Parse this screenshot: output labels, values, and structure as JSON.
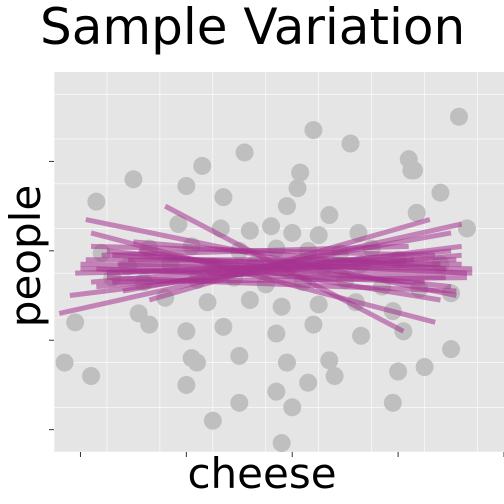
{
  "chart_data": {
    "type": "scatter",
    "title": "Sample Variation",
    "xlabel": "cheese",
    "ylabel": "people",
    "xlim": [
      -4,
      4.5
    ],
    "ylim": [
      -4,
      4.5
    ],
    "grid": true,
    "legend": "none",
    "point_color": "#bfbfbf",
    "line_color": "#a6338f",
    "panel_color": "#e5e5e5",
    "points": [
      [
        3.65,
        3.5
      ],
      [
        2.7,
        2.55
      ],
      [
        2.75,
        2.3
      ],
      [
        0.65,
        2.25
      ],
      [
        -2.5,
        2.1
      ],
      [
        -1.5,
        1.95
      ],
      [
        0.6,
        1.9
      ],
      [
        -0.8,
        1.7
      ],
      [
        0.4,
        1.5
      ],
      [
        1.2,
        1.3
      ],
      [
        2.85,
        1.35
      ],
      [
        -1.65,
        1.1
      ],
      [
        -0.85,
        1.0
      ],
      [
        -0.3,
        0.95
      ],
      [
        0.1,
        1.05
      ],
      [
        0.5,
        0.9
      ],
      [
        1.0,
        0.85
      ],
      [
        1.75,
        0.9
      ],
      [
        -2.2,
        0.55
      ],
      [
        -1.4,
        0.6
      ],
      [
        -0.5,
        0.5
      ],
      [
        0.2,
        0.55
      ],
      [
        0.8,
        0.5
      ],
      [
        1.4,
        0.45
      ],
      [
        2.0,
        0.55
      ],
      [
        -3.1,
        0.45
      ],
      [
        -2.6,
        0.15
      ],
      [
        -1.8,
        0.2
      ],
      [
        -1.0,
        0.15
      ],
      [
        -0.2,
        0.2
      ],
      [
        0.4,
        0.1
      ],
      [
        1.1,
        0.15
      ],
      [
        1.8,
        0.2
      ],
      [
        2.5,
        0.3
      ],
      [
        3.3,
        0.2
      ],
      [
        -2.9,
        -0.1
      ],
      [
        -2.3,
        -0.2
      ],
      [
        -1.3,
        -0.15
      ],
      [
        -0.6,
        -0.1
      ],
      [
        0.0,
        -0.25
      ],
      [
        0.7,
        -0.2
      ],
      [
        1.5,
        -0.15
      ],
      [
        2.2,
        -0.3
      ],
      [
        2.9,
        -0.35
      ],
      [
        3.5,
        -0.45
      ],
      [
        -1.9,
        -0.55
      ],
      [
        -1.1,
        -0.65
      ],
      [
        -0.3,
        -0.6
      ],
      [
        0.3,
        -0.75
      ],
      [
        1.0,
        -0.7
      ],
      [
        1.7,
        -0.65
      ],
      [
        2.4,
        -0.85
      ],
      [
        -2.2,
        -1.15
      ],
      [
        -1.5,
        -1.3
      ],
      [
        -0.8,
        -1.2
      ],
      [
        0.2,
        -1.35
      ],
      [
        0.9,
        -1.15
      ],
      [
        1.8,
        -1.4
      ],
      [
        2.6,
        -1.3
      ],
      [
        -1.4,
        -1.9
      ],
      [
        -0.5,
        -1.85
      ],
      [
        0.4,
        -2.0
      ],
      [
        1.2,
        -1.95
      ],
      [
        2.5,
        -2.2
      ],
      [
        -0.5,
        -2.9
      ],
      [
        0.2,
        -2.65
      ],
      [
        1.3,
        -2.3
      ],
      [
        -1.3,
        -2.0
      ],
      [
        3.0,
        -2.1
      ],
      [
        -3.3,
        -2.3
      ],
      [
        -1.5,
        -2.5
      ],
      [
        0.5,
        -3.0
      ],
      [
        0.8,
        -2.45
      ],
      [
        2.4,
        -2.9
      ],
      [
        3.5,
        -1.7
      ],
      [
        -1.0,
        -3.3
      ],
      [
        0.3,
        -3.8
      ],
      [
        -3.8,
        -2.0
      ],
      [
        -3.6,
        -1.1
      ],
      [
        -3.2,
        1.6
      ],
      [
        3.3,
        1.8
      ],
      [
        3.8,
        1.0
      ],
      [
        -2.4,
        -0.9
      ],
      [
        2.8,
        2.3
      ],
      [
        -0.4,
        2.7
      ],
      [
        1.6,
        2.9
      ],
      [
        -1.2,
        2.4
      ],
      [
        0.9,
        3.2
      ]
    ],
    "lines": [
      [
        [
          -3.9,
          -0.9
        ],
        [
          3.7,
          1.1
        ]
      ],
      [
        [
          -3.7,
          -0.5
        ],
        [
          3.7,
          0.6
        ]
      ],
      [
        [
          -3.4,
          1.2
        ],
        [
          3.6,
          -0.5
        ]
      ],
      [
        [
          -3.3,
          0.9
        ],
        [
          3.2,
          -1.1
        ]
      ],
      [
        [
          -3.5,
          0.2
        ],
        [
          3.9,
          0.0
        ]
      ],
      [
        [
          -3.2,
          -0.3
        ],
        [
          3.7,
          0.4
        ]
      ],
      [
        [
          -3.0,
          0.5
        ],
        [
          3.5,
          -0.3
        ]
      ],
      [
        [
          -3.6,
          0.0
        ],
        [
          3.3,
          0.2
        ]
      ],
      [
        [
          -2.9,
          -0.2
        ],
        [
          3.8,
          -0.1
        ]
      ],
      [
        [
          -3.4,
          0.3
        ],
        [
          3.6,
          0.3
        ]
      ],
      [
        [
          -3.1,
          0.4
        ],
        [
          2.7,
          0.6
        ]
      ],
      [
        [
          -2.7,
          -0.4
        ],
        [
          3.5,
          0.9
        ]
      ],
      [
        [
          -3.2,
          0.1
        ],
        [
          3.0,
          -0.2
        ]
      ],
      [
        [
          -2.5,
          0.7
        ],
        [
          3.4,
          0.1
        ]
      ],
      [
        [
          -3.0,
          -0.1
        ],
        [
          3.6,
          -0.4
        ]
      ],
      [
        [
          -1.9,
          1.5
        ],
        [
          2.6,
          -1.3
        ]
      ],
      [
        [
          -3.3,
          0.6
        ],
        [
          3.2,
          0.4
        ]
      ],
      [
        [
          -2.8,
          0.2
        ],
        [
          3.9,
          0.1
        ]
      ],
      [
        [
          -2.2,
          -0.6
        ],
        [
          3.1,
          1.2
        ]
      ],
      [
        [
          -3.5,
          0.1
        ],
        [
          3.4,
          -0.1
        ]
      ],
      [
        [
          -2.6,
          0.3
        ],
        [
          3.7,
          0.2
        ]
      ],
      [
        [
          -3.0,
          0.0
        ],
        [
          2.8,
          0.3
        ]
      ],
      [
        [
          -2.4,
          0.5
        ],
        [
          3.3,
          -0.6
        ]
      ],
      [
        [
          -3.3,
          -0.2
        ],
        [
          3.5,
          0.5
        ]
      ],
      [
        [
          -2.9,
          0.4
        ],
        [
          3.8,
          0.0
        ]
      ]
    ]
  }
}
